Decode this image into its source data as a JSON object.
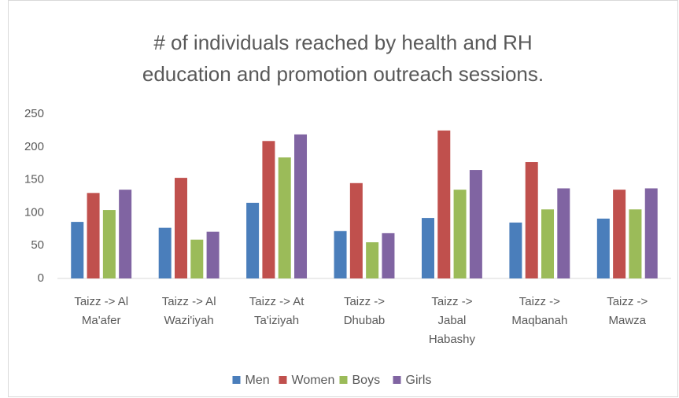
{
  "chart_data": {
    "type": "bar",
    "title": "# of individuals reached by health and RH education and promotion outreach sessions.",
    "categories": [
      "Taizz -> Al Ma'afer",
      "Taizz -> Al Wazi'iyah",
      "Taizz -> At Ta'iziyah",
      "Taizz -> Dhubab",
      "Taizz -> Jabal Habashy",
      "Taizz -> Maqbanah",
      "Taizz -> Mawza"
    ],
    "series": [
      {
        "name": "Men",
        "color": "#4a7ebb",
        "values": [
          86,
          77,
          115,
          72,
          92,
          85,
          91
        ]
      },
      {
        "name": "Women",
        "color": "#c0504d",
        "values": [
          130,
          153,
          209,
          145,
          225,
          177,
          135
        ]
      },
      {
        "name": "Boys",
        "color": "#9bbb59",
        "values": [
          104,
          59,
          184,
          55,
          135,
          105,
          105
        ]
      },
      {
        "name": "Girls",
        "color": "#8064a2",
        "values": [
          135,
          71,
          219,
          69,
          165,
          137,
          137
        ]
      }
    ],
    "ylim": [
      0,
      250
    ],
    "yticks": [
      0,
      50,
      100,
      150,
      200,
      250
    ],
    "grid": false,
    "legend": "bottom"
  }
}
